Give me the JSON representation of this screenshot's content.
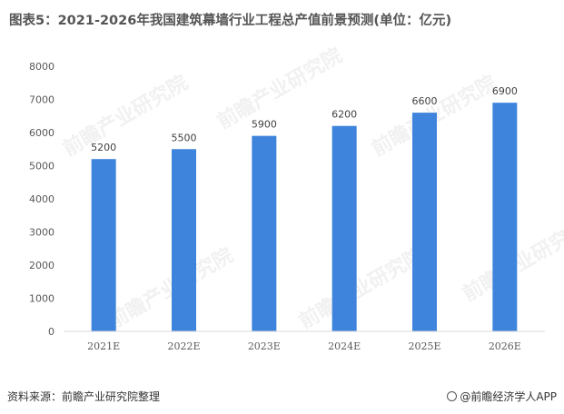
{
  "title": "图表5：2021-2026年我国建筑幕墙行业工程总产值前景预测(单位：亿元)",
  "source": "资料来源：前瞻产业研究院整理",
  "brand": "@前瞻经济学人APP",
  "watermark_text": "前瞻产业研究院",
  "colors": {
    "bar": "#3f84dc",
    "axis": "#d9d9d9",
    "text": "#595959"
  },
  "chart_data": {
    "type": "bar",
    "title": "图表5：2021-2026年我国建筑幕墙行业工程总产值前景预测(单位：亿元)",
    "categories": [
      "2021E",
      "2022E",
      "2023E",
      "2024E",
      "2025E",
      "2026E"
    ],
    "values": [
      5200,
      5500,
      5900,
      6200,
      6600,
      6900
    ],
    "data_labels": [
      "5200",
      "5500",
      "5900",
      "6200",
      "6600",
      "6900"
    ],
    "xlabel": "",
    "ylabel": "",
    "ylim": [
      0,
      8000
    ],
    "yticks": [
      0,
      1000,
      2000,
      3000,
      4000,
      5000,
      6000,
      7000,
      8000
    ],
    "grid": false,
    "legend": "none"
  }
}
